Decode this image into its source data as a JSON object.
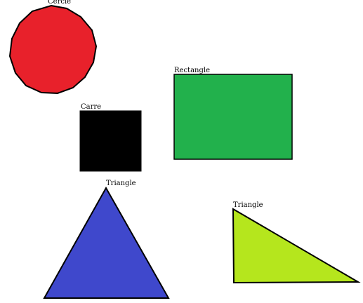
{
  "labels": {
    "circle": "Cercle",
    "rectangle": "Rectangle",
    "square": "Carre",
    "triangle_equilateral": "Triangle",
    "triangle_right": "Triangle"
  },
  "colors": {
    "circle": "#e8212b",
    "rectangle": "#22b14c",
    "square": "#000000",
    "triangle_equilateral": "#3f48cc",
    "triangle_right": "#b5e61d",
    "outline": "#000000"
  }
}
